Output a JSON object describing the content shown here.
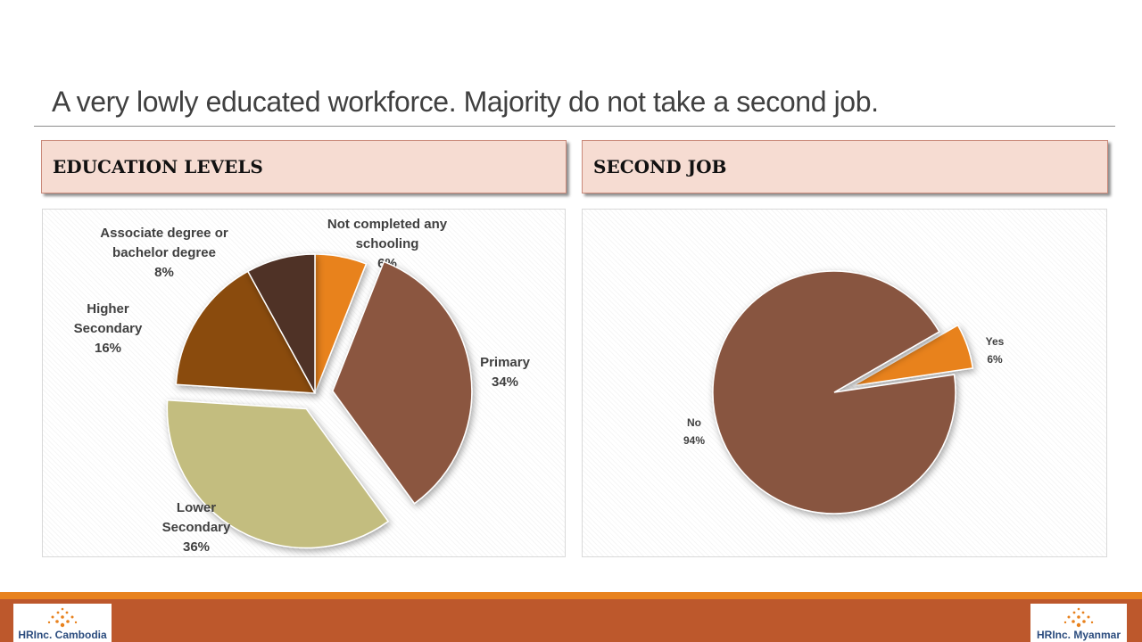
{
  "slide": {
    "title": "A very lowly educated workforce.  Majority do not take a second job."
  },
  "panels": {
    "education_header": "EDUCATION LEVELS",
    "second_job_header": "SECOND JOB"
  },
  "footer": {
    "logo_left": "HRInc. Cambodia",
    "logo_right": "HRInc. Myanmar"
  },
  "colors": {
    "header_bg": "#f6dcd2",
    "footer_band": "#bd582c",
    "footer_accent": "#e8821e"
  },
  "chart_data": [
    {
      "type": "pie",
      "title": "EDUCATION LEVELS",
      "slices": [
        {
          "label": "Not completed any schooling",
          "label_lines": [
            "Not completed any",
            "schooling"
          ],
          "value": 6,
          "display": "6%",
          "color": "#e8821e",
          "exploded": false
        },
        {
          "label": "Primary",
          "label_lines": [
            "Primary"
          ],
          "value": 34,
          "display": "34%",
          "color": "#8b5640",
          "exploded": true
        },
        {
          "label": "Lower Secondary",
          "label_lines": [
            "Lower",
            "Secondary"
          ],
          "value": 36,
          "display": "36%",
          "color": "#c3bd7f",
          "exploded": true
        },
        {
          "label": "Higher Secondary",
          "label_lines": [
            "Higher",
            "Secondary"
          ],
          "value": 16,
          "display": "16%",
          "color": "#8a4c10",
          "exploded": false
        },
        {
          "label": "Associate degree or bachelor degree",
          "label_lines": [
            "Associate degree or",
            "bachelor degree"
          ],
          "value": 8,
          "display": "8%",
          "color": "#4f3326",
          "exploded": false
        }
      ]
    },
    {
      "type": "pie",
      "title": "SECOND JOB",
      "slices": [
        {
          "label": "Yes",
          "label_lines": [
            "Yes"
          ],
          "value": 6,
          "display": "6%",
          "color": "#e8821e",
          "exploded": true
        },
        {
          "label": "No",
          "label_lines": [
            "No"
          ],
          "value": 94,
          "display": "94%",
          "color": "#885540",
          "exploded": false
        }
      ]
    }
  ]
}
